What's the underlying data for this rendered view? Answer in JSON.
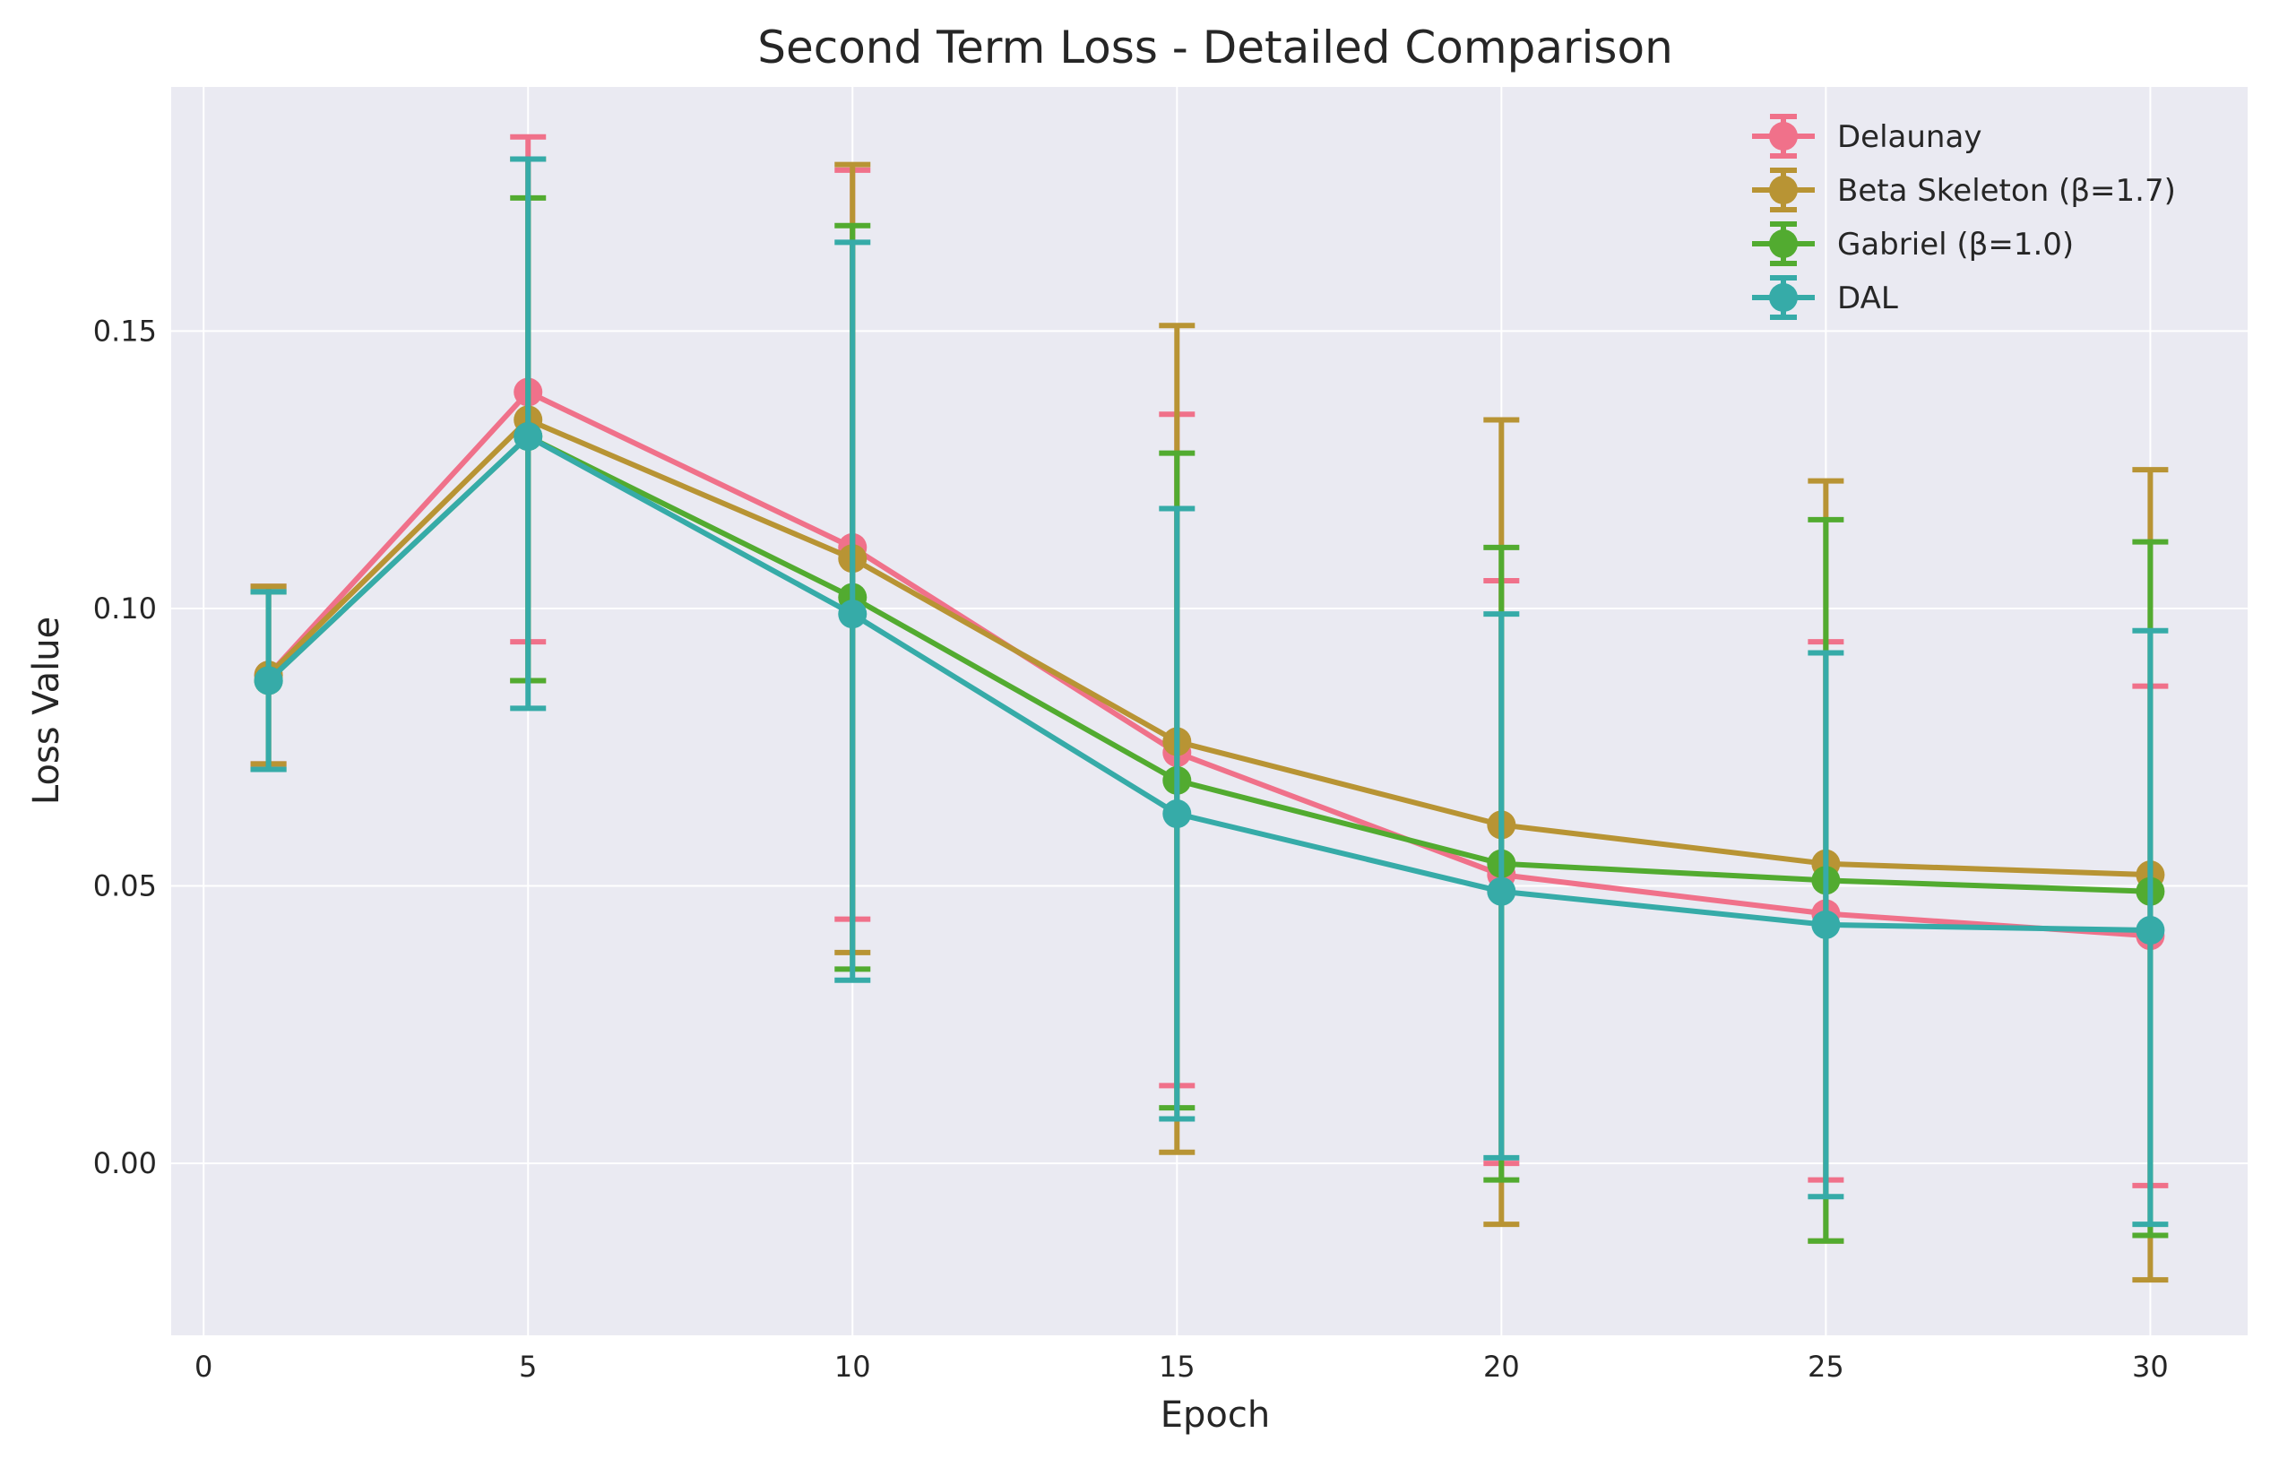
{
  "chart_data": {
    "type": "line",
    "title": "Second Term Loss - Detailed Comparison",
    "xlabel": "Epoch",
    "ylabel": "Loss Value",
    "x": [
      1,
      5,
      10,
      15,
      20,
      25,
      30
    ],
    "xlim": [
      -0.5,
      31.5
    ],
    "ylim": [
      -0.031,
      0.194
    ],
    "xticks": [
      0,
      5,
      10,
      15,
      20,
      25,
      30
    ],
    "yticks": [
      0.0,
      0.05,
      0.1,
      0.15
    ],
    "xtick_labels": [
      "0",
      "5",
      "10",
      "15",
      "20",
      "25",
      "30"
    ],
    "ytick_labels": [
      "0.00",
      "0.05",
      "0.10",
      "0.15"
    ],
    "grid": true,
    "legend_position": "top-right",
    "error_bars": true,
    "series": [
      {
        "name": "Delaunay",
        "color": "#f0718a",
        "values": [
          0.088,
          0.139,
          0.111,
          0.074,
          0.052,
          0.045,
          0.041
        ],
        "err_low": [
          0.072,
          0.094,
          0.044,
          0.014,
          0.0,
          -0.003,
          -0.004
        ],
        "err_high": [
          0.104,
          0.185,
          0.179,
          0.135,
          0.105,
          0.094,
          0.086
        ]
      },
      {
        "name": "Beta Skeleton (β=1.7)",
        "color": "#b89434",
        "values": [
          0.088,
          0.134,
          0.109,
          0.076,
          0.061,
          0.054,
          0.052
        ],
        "err_low": [
          0.072,
          0.087,
          0.038,
          0.002,
          -0.011,
          -0.014,
          -0.021
        ],
        "err_high": [
          0.104,
          0.181,
          0.18,
          0.151,
          0.134,
          0.123,
          0.125
        ]
      },
      {
        "name": "Gabriel (β=1.0)",
        "color": "#52ab30",
        "values": [
          0.087,
          0.131,
          0.102,
          0.069,
          0.054,
          0.051,
          0.049
        ],
        "err_low": [
          0.071,
          0.087,
          0.035,
          0.01,
          -0.003,
          -0.014,
          -0.013
        ],
        "err_high": [
          0.103,
          0.174,
          0.169,
          0.128,
          0.111,
          0.116,
          0.112
        ]
      },
      {
        "name": "DAL",
        "color": "#36aba8",
        "values": [
          0.087,
          0.131,
          0.099,
          0.063,
          0.049,
          0.043,
          0.042
        ],
        "err_low": [
          0.071,
          0.082,
          0.033,
          0.008,
          0.001,
          -0.006,
          -0.011
        ],
        "err_high": [
          0.103,
          0.181,
          0.166,
          0.118,
          0.099,
          0.092,
          0.096
        ]
      }
    ]
  }
}
